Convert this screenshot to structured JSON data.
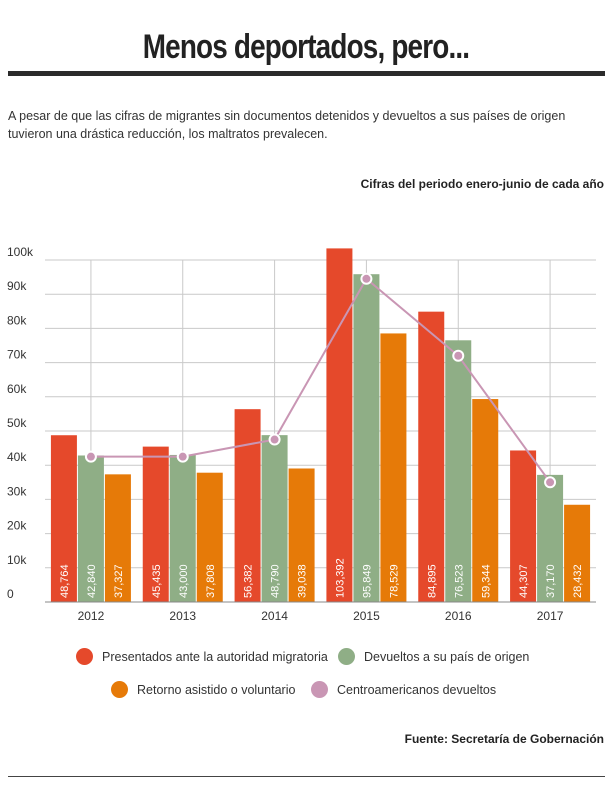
{
  "header": {
    "title": "Menos deportados, pero...",
    "intro": "A pesar de que las cifras de migrantes sin documentos detenidos y devueltos a sus países de origen tuvieron una drástica reducción, los maltratos prevalecen.",
    "period_note": "Cifras del periodo enero-junio de cada año"
  },
  "footer": {
    "source": "Fuente: Secretaría de Gobernación"
  },
  "chart_data": {
    "type": "bar",
    "categories": [
      "2012",
      "2013",
      "2014",
      "2015",
      "2016",
      "2017"
    ],
    "ylim": [
      0,
      100000
    ],
    "yticks": [
      0,
      10000,
      20000,
      30000,
      40000,
      50000,
      60000,
      70000,
      80000,
      90000,
      100000
    ],
    "ytick_labels": [
      "0",
      "10k",
      "20k",
      "30k",
      "40k",
      "50k",
      "60k",
      "70k",
      "80k",
      "90k",
      "100k"
    ],
    "grid": true,
    "legend_position": "bottom",
    "series": [
      {
        "name": "Presentados ante la autoridad migratoria",
        "color": "#e5492b",
        "values": [
          48764,
          45435,
          56382,
          103392,
          84895,
          44307
        ],
        "labels": [
          "48,764",
          "45,435",
          "56,382",
          "103,392",
          "84,895",
          "44,307"
        ]
      },
      {
        "name": "Devueltos a su país de origen",
        "color": "#8fae86",
        "values": [
          42840,
          43000,
          48790,
          95849,
          76523,
          37170
        ],
        "labels": [
          "42,840",
          "43,000",
          "48,790",
          "95,849",
          "76,523",
          "37,170"
        ]
      },
      {
        "name": "Retorno asistido o voluntario",
        "color": "#e67a08",
        "values": [
          37327,
          37808,
          39038,
          78529,
          59344,
          28432
        ],
        "labels": [
          "37,327",
          "37,808",
          "39,038",
          "78,529",
          "59,344",
          "28,432"
        ]
      }
    ],
    "line_series": {
      "name": "Centroamericanos devueltos",
      "color": "#c996b4",
      "values": [
        42500,
        42500,
        47500,
        94500,
        72000,
        35000
      ]
    }
  }
}
